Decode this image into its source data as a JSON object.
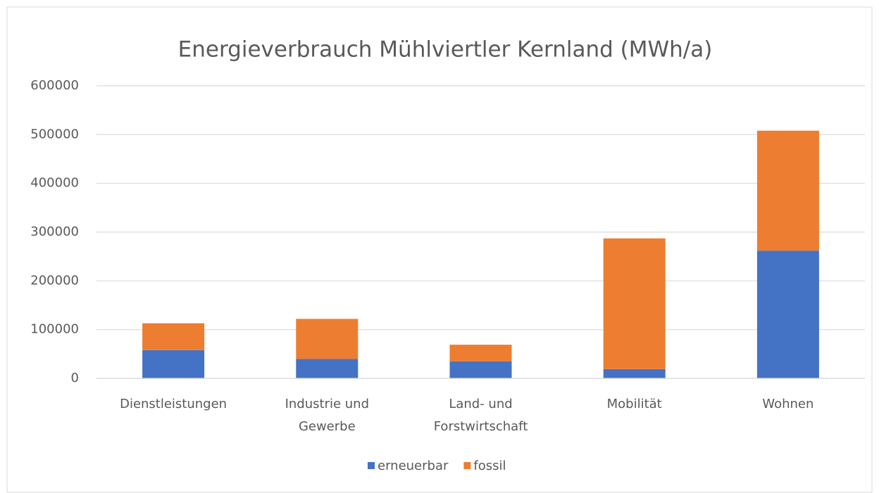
{
  "chart_data": {
    "type": "stacked_bar",
    "title": "Energieverbrauch Mühlviertler Kernland (MWh/a)",
    "categories": [
      "Dienstleistungen",
      "Industrie und\nGewerbe",
      "Land- und\nForstwirtschaft",
      "Mobilität",
      "Wohnen"
    ],
    "series": [
      {
        "name": "erneuerbar",
        "color": "#4472c4",
        "values": [
          58000,
          40000,
          35000,
          19000,
          262000
        ]
      },
      {
        "name": "fossil",
        "color": "#ed7d31",
        "values": [
          55000,
          82000,
          34000,
          268000,
          246000
        ]
      }
    ],
    "ylim": [
      0,
      600000
    ],
    "yticks": [
      0,
      100000,
      200000,
      300000,
      400000,
      500000,
      600000
    ],
    "grid": true,
    "legend": "bottom"
  }
}
